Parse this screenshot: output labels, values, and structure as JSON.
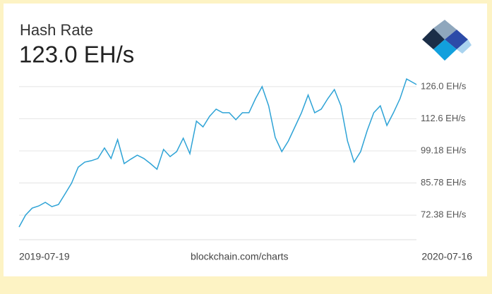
{
  "chart_data": {
    "type": "line",
    "title": "Hash Rate",
    "headline": "123.0 EH/s",
    "source": "blockchain.com/charts",
    "x": [
      "2019-07-19",
      "2019-07-25",
      "2019-07-31",
      "2019-08-06",
      "2019-08-12",
      "2019-08-18",
      "2019-08-24",
      "2019-08-30",
      "2019-09-05",
      "2019-09-11",
      "2019-09-17",
      "2019-09-23",
      "2019-09-29",
      "2019-10-05",
      "2019-10-11",
      "2019-10-17",
      "2019-10-23",
      "2019-10-29",
      "2019-11-04",
      "2019-11-10",
      "2019-11-16",
      "2019-11-22",
      "2019-11-28",
      "2019-12-04",
      "2019-12-10",
      "2019-12-16",
      "2019-12-22",
      "2019-12-28",
      "2020-01-03",
      "2020-01-09",
      "2020-01-15",
      "2020-01-21",
      "2020-01-27",
      "2020-02-02",
      "2020-02-08",
      "2020-02-14",
      "2020-02-20",
      "2020-02-26",
      "2020-03-03",
      "2020-03-09",
      "2020-03-15",
      "2020-03-21",
      "2020-03-27",
      "2020-04-02",
      "2020-04-08",
      "2020-04-14",
      "2020-04-20",
      "2020-04-26",
      "2020-05-02",
      "2020-05-08",
      "2020-05-14",
      "2020-05-20",
      "2020-05-26",
      "2020-06-01",
      "2020-06-07",
      "2020-06-13",
      "2020-06-19",
      "2020-06-25",
      "2020-07-01",
      "2020-07-07",
      "2020-07-16"
    ],
    "series": [
      {
        "name": "Hash Rate",
        "color": "#2ea3d6",
        "values": [
          67.4,
          72.4,
          75.3,
          76.2,
          77.7,
          75.9,
          76.8,
          81.2,
          85.7,
          92.4,
          94.5,
          95.1,
          96.0,
          100.4,
          96.0,
          103.9,
          93.9,
          95.7,
          97.4,
          96.0,
          93.9,
          91.5,
          99.8,
          96.8,
          98.9,
          104.5,
          98.0,
          111.6,
          109.2,
          113.6,
          116.6,
          115.1,
          115.1,
          112.2,
          115.1,
          115.1,
          121.0,
          126.0,
          118.0,
          104.8,
          98.9,
          103.3,
          109.2,
          115.1,
          122.5,
          115.1,
          116.6,
          121.0,
          124.8,
          118.0,
          103.3,
          94.5,
          98.9,
          107.7,
          115.1,
          118.0,
          109.8,
          115.1,
          121.0,
          129.2,
          126.9
        ]
      }
    ],
    "xlim": [
      "2019-07-19",
      "2020-07-16"
    ],
    "xticks": [
      "2019-07-19",
      "2020-07-16"
    ],
    "ylim": [
      62.1,
      129.8
    ],
    "yticks": [
      {
        "value": 72.38,
        "label": "72.38 EH/s"
      },
      {
        "value": 85.78,
        "label": "85.78 EH/s"
      },
      {
        "value": 99.18,
        "label": "99.18 EH/s"
      },
      {
        "value": 112.6,
        "label": "112.6 EH/s"
      },
      {
        "value": 126.0,
        "label": "126.0 EH/s"
      }
    ],
    "grid": true
  }
}
